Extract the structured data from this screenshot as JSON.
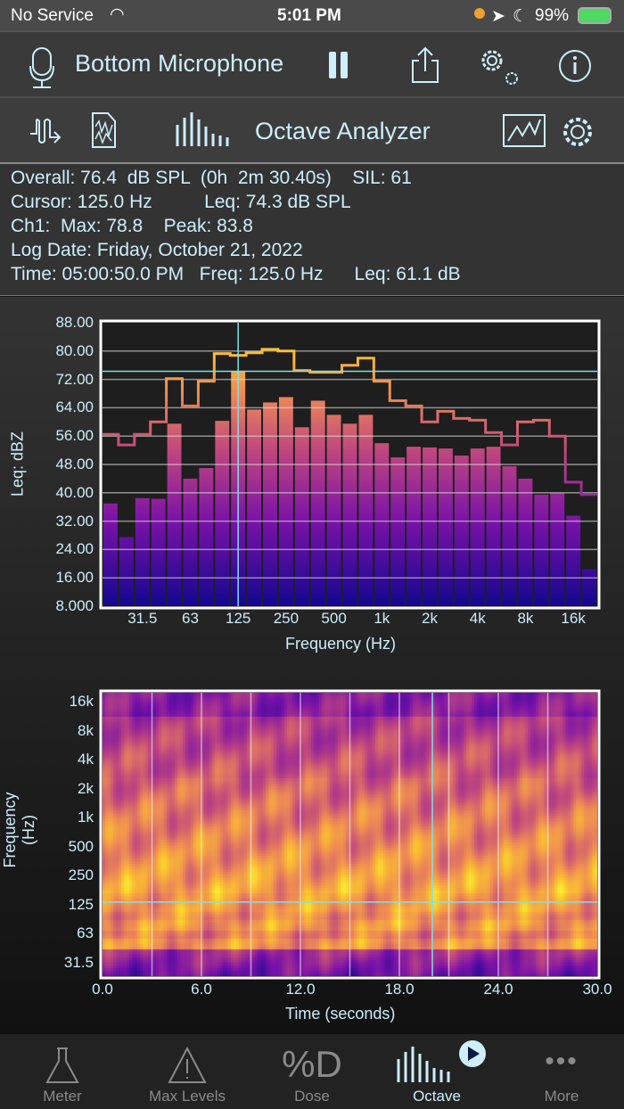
{
  "status": {
    "carrier": "No Service",
    "time": "5:01 PM",
    "battery": "99%"
  },
  "toolbar": {
    "input": "Bottom Microphone",
    "icons": [
      "microphone-icon",
      "pause-icon",
      "share-icon",
      "settings-gears-icon",
      "info-icon"
    ]
  },
  "modebar": {
    "title": "Octave Analyzer",
    "icons": [
      "signal-generator-icon",
      "file-waveform-icon",
      "octave-bars-icon",
      "graph-icon",
      "gear-icon"
    ]
  },
  "info": {
    "lines": [
      "Overall: 76.4  dB SPL  (0h  2m 30.40s)    SIL: 61",
      "Cursor: 125.0 Hz          Leq: 74.3 dB SPL",
      "Ch1:  Max: 78.8    Peak: 83.8",
      "Log Date: Friday, October 21, 2022",
      "Time: 05:00:50.0 PM   Freq: 125.0 Hz      Leq: 61.1 dB"
    ]
  },
  "chart_data": [
    {
      "type": "bar",
      "ylabel": "Leq: dBZ",
      "xlabel": "Frequency (Hz)",
      "ylim": [
        8,
        88
      ],
      "yticks": [
        "88.00",
        "80.00",
        "72.00",
        "64.00",
        "56.00",
        "48.00",
        "40.00",
        "32.00",
        "24.00",
        "16.00",
        "8.000"
      ],
      "xticks": [
        "31.5",
        "63",
        "125",
        "250",
        "500",
        "1k",
        "2k",
        "4k",
        "8k",
        "16k"
      ],
      "bands": [
        "20",
        "25",
        "31.5",
        "40",
        "50",
        "63",
        "80",
        "100",
        "125",
        "160",
        "200",
        "250",
        "315",
        "400",
        "500",
        "630",
        "800",
        "1k",
        "1.25k",
        "1.6k",
        "2k",
        "2.5k",
        "3.15k",
        "4k",
        "5k",
        "6.3k",
        "8k",
        "10k",
        "12.5k",
        "16k",
        "20k"
      ],
      "leq": [
        37,
        27.5,
        38.5,
        38.3,
        59.5,
        44,
        47,
        60.3,
        74.3,
        63.5,
        65.5,
        67,
        58.5,
        66,
        62,
        59.5,
        62,
        54,
        50,
        53,
        52.8,
        52.5,
        50.5,
        52.5,
        53,
        47.5,
        44,
        39.5,
        40,
        33.5,
        18.5
      ],
      "max": [
        56.5,
        53.5,
        56.5,
        60,
        72.2,
        64.5,
        71.5,
        79.3,
        78.8,
        79.5,
        80.5,
        80,
        74.5,
        74,
        74,
        76,
        78,
        71.5,
        66,
        64.5,
        60,
        63,
        61,
        60.5,
        57,
        53.5,
        60,
        60.5,
        56,
        43,
        39.5
      ],
      "cursor": {
        "band": "125",
        "level": 74.3
      }
    },
    {
      "type": "heatmap",
      "ylabel": "Frequency (Hz)",
      "xlabel": "Time (seconds)",
      "yticks": [
        "16k",
        "8k",
        "4k",
        "2k",
        "1k",
        "500",
        "250",
        "125",
        "63",
        "31.5"
      ],
      "xticks": [
        "0.0",
        "6.0",
        "12.0",
        "18.0",
        "24.0",
        "30.0"
      ],
      "xlim": [
        0,
        30
      ],
      "cursor": {
        "time": 20,
        "freq": "125"
      }
    }
  ],
  "tabs": [
    {
      "label": "Meter",
      "icon": "flask-icon"
    },
    {
      "label": "Max Levels",
      "icon": "warning-icon"
    },
    {
      "label": "Dose",
      "icon": "dose-icon"
    },
    {
      "label": "Octave",
      "icon": "octave-bars-icon",
      "active": true
    },
    {
      "label": "More",
      "icon": "more-icon"
    }
  ],
  "colors": {
    "accent": "#cdeefa",
    "cursor": "#7fe0e8"
  }
}
